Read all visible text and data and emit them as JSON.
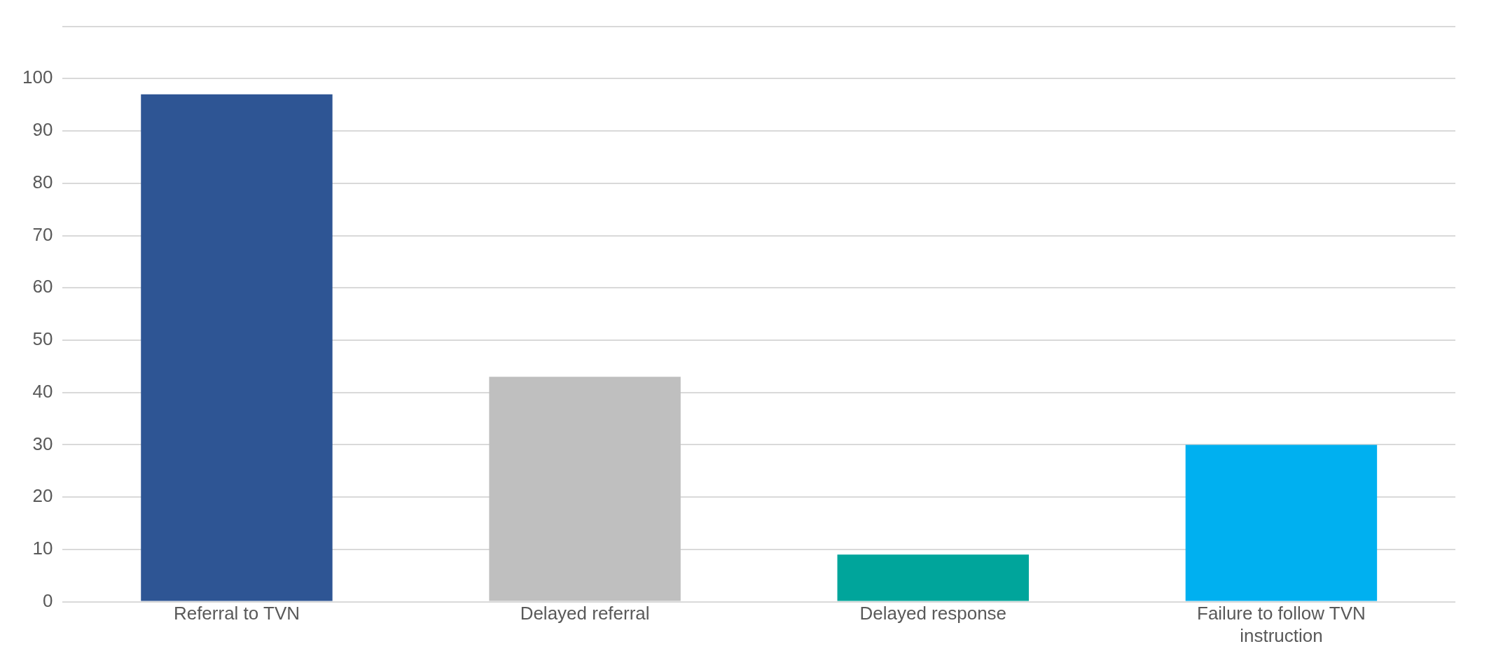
{
  "chart_data": {
    "type": "bar",
    "categories": [
      "Referral to TVN",
      "Delayed referral",
      "Delayed response",
      "Failure to follow TVN instruction"
    ],
    "values": [
      97,
      43,
      9,
      30
    ],
    "colors": [
      "#2e5594",
      "#bfbfbf",
      "#00a59b",
      "#00b0f0"
    ],
    "ylim": [
      0,
      110
    ],
    "yticks": [
      0,
      10,
      20,
      30,
      40,
      50,
      60,
      70,
      80,
      90,
      100,
      {
        "value": 110,
        "label": null
      }
    ],
    "grid": "y",
    "legend": false
  }
}
